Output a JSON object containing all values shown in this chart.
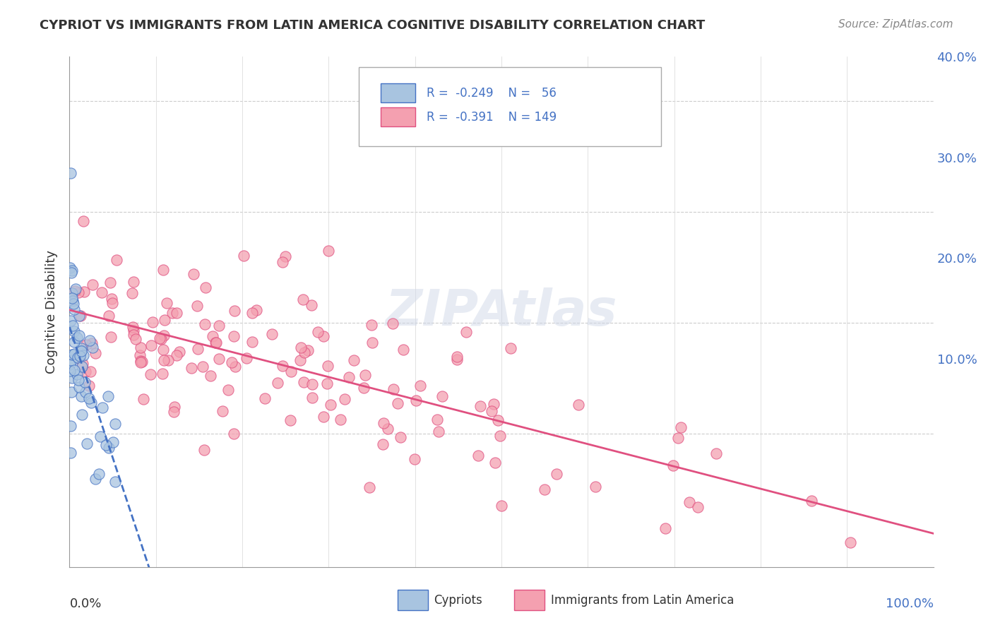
{
  "title": "CYPRIOT VS IMMIGRANTS FROM LATIN AMERICA COGNITIVE DISABILITY CORRELATION CHART",
  "source": "Source: ZipAtlas.com",
  "ylabel": "Cognitive Disability",
  "xlim": [
    0.0,
    1.0
  ],
  "ylim": [
    -0.02,
    0.44
  ],
  "cypriot_color": "#a8c4e0",
  "latin_color": "#f4a0b0",
  "cypriot_line_color": "#4472c4",
  "latin_line_color": "#e05080",
  "y_ticks": [
    0.1,
    0.2,
    0.3,
    0.4
  ],
  "y_tick_labels": [
    "10.0%",
    "20.0%",
    "30.0%",
    "40.0%"
  ]
}
